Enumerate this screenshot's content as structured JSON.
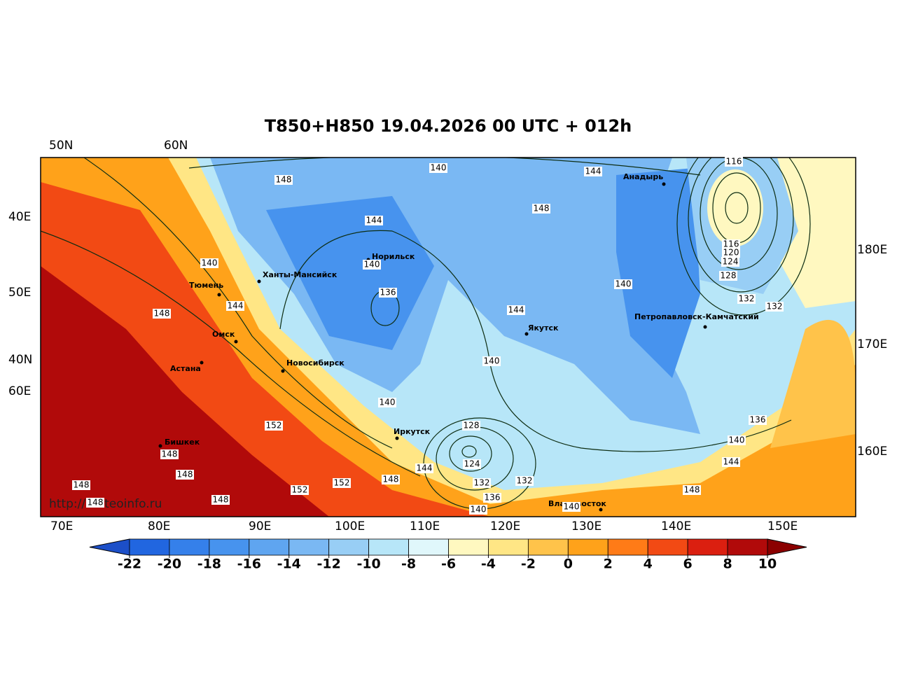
{
  "title": "T850+H850 19.04.2026 00 UTC + 012h",
  "watermark": "http://meteoinfo.ru",
  "top_labels": [
    "50N",
    "60N"
  ],
  "left_labels": [
    "40E",
    "50E",
    "40N",
    "60E"
  ],
  "right_labels": [
    "180E",
    "170E",
    "160E"
  ],
  "bottom_labels": [
    "70E",
    "80E",
    "90E",
    "100E",
    "110E",
    "120E",
    "130E",
    "140E",
    "150E"
  ],
  "cities": [
    "Анадырь",
    "Норильск",
    "Ханты-Мансийск",
    "Тюмень",
    "Омск",
    "Новосибирск",
    "Астана",
    "Якутск",
    "Петропавловск-Камчатский",
    "Иркутск",
    "Бишкек",
    "Владивосток"
  ],
  "contour_labels": [
    116,
    148,
    140,
    144,
    148,
    144,
    140,
    116,
    120,
    124,
    128,
    140,
    140,
    136,
    132,
    132,
    144,
    144,
    148,
    140,
    140,
    136,
    140,
    152,
    128,
    124,
    144,
    144,
    148,
    148,
    132,
    132,
    148,
    152,
    148,
    152,
    136,
    148,
    148,
    140,
    148,
    140
  ],
  "colorbar": {
    "levels": [
      -22,
      -20,
      -18,
      -16,
      -14,
      -12,
      -10,
      -8,
      -6,
      -4,
      -2,
      0,
      2,
      4,
      6,
      8,
      10
    ],
    "colors": [
      "#2166e0",
      "#3580ea",
      "#4793ee",
      "#5fa5f0",
      "#7ab8f3",
      "#98cef5",
      "#b7e6f8",
      "#e0f7fb",
      "#fff8c0",
      "#ffe685",
      "#ffc34a",
      "#ffa21a",
      "#ff7b17",
      "#f24a14",
      "#db1f10",
      "#b10a0a"
    ],
    "under_color": "#1c4fc8",
    "over_color": "#8b0000"
  }
}
